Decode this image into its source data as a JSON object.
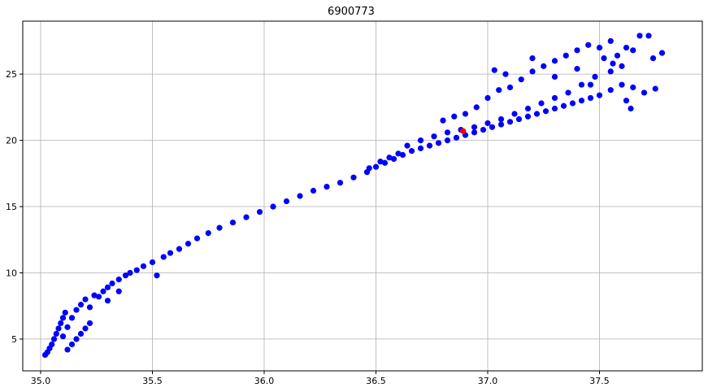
{
  "chart_data": {
    "type": "scatter",
    "title": "6900773",
    "xlabel": "",
    "ylabel": "",
    "xlim": [
      34.92,
      37.96
    ],
    "ylim": [
      2.6,
      29.0
    ],
    "xticks": [
      35.0,
      35.5,
      36.0,
      36.5,
      37.0,
      37.5
    ],
    "xtick_labels": [
      "35.0",
      "35.5",
      "36.0",
      "36.5",
      "37.0",
      "37.5"
    ],
    "yticks": [
      5,
      10,
      15,
      20,
      25
    ],
    "ytick_labels": [
      "5",
      "10",
      "15",
      "20",
      "25"
    ],
    "grid": true,
    "legend": "none",
    "series": [
      {
        "color": "#0000ff",
        "points": [
          [
            35.02,
            3.8
          ],
          [
            35.03,
            4.0
          ],
          [
            35.04,
            4.3
          ],
          [
            35.05,
            4.6
          ],
          [
            35.06,
            5.0
          ],
          [
            35.07,
            5.4
          ],
          [
            35.08,
            5.8
          ],
          [
            35.09,
            6.2
          ],
          [
            35.1,
            6.6
          ],
          [
            35.11,
            7.0
          ],
          [
            35.12,
            4.2
          ],
          [
            35.14,
            4.6
          ],
          [
            35.16,
            5.0
          ],
          [
            35.18,
            5.4
          ],
          [
            35.2,
            5.8
          ],
          [
            35.22,
            6.2
          ],
          [
            35.1,
            5.2
          ],
          [
            35.12,
            5.9
          ],
          [
            35.14,
            6.6
          ],
          [
            35.16,
            7.2
          ],
          [
            35.18,
            7.6
          ],
          [
            35.2,
            8.0
          ],
          [
            35.22,
            7.4
          ],
          [
            35.24,
            8.3
          ],
          [
            35.26,
            8.2
          ],
          [
            35.28,
            8.6
          ],
          [
            35.3,
            8.9
          ],
          [
            35.32,
            9.2
          ],
          [
            35.35,
            9.5
          ],
          [
            35.38,
            9.8
          ],
          [
            35.3,
            7.9
          ],
          [
            35.35,
            8.6
          ],
          [
            35.4,
            10.0
          ],
          [
            35.43,
            10.2
          ],
          [
            35.46,
            10.5
          ],
          [
            35.5,
            10.8
          ],
          [
            35.52,
            9.8
          ],
          [
            35.55,
            11.2
          ],
          [
            35.58,
            11.5
          ],
          [
            35.62,
            11.8
          ],
          [
            35.66,
            12.2
          ],
          [
            35.7,
            12.6
          ],
          [
            35.75,
            13.0
          ],
          [
            35.8,
            13.4
          ],
          [
            35.86,
            13.8
          ],
          [
            35.92,
            14.2
          ],
          [
            35.98,
            14.6
          ],
          [
            36.04,
            15.0
          ],
          [
            36.1,
            15.4
          ],
          [
            36.16,
            15.8
          ],
          [
            36.22,
            16.2
          ],
          [
            36.28,
            16.5
          ],
          [
            36.34,
            16.8
          ],
          [
            36.4,
            17.2
          ],
          [
            36.46,
            17.6
          ],
          [
            36.5,
            18.0
          ],
          [
            36.54,
            18.3
          ],
          [
            36.58,
            18.6
          ],
          [
            36.62,
            18.9
          ],
          [
            36.66,
            19.2
          ],
          [
            36.7,
            19.4
          ],
          [
            36.74,
            19.6
          ],
          [
            36.78,
            19.8
          ],
          [
            36.82,
            20.0
          ],
          [
            36.86,
            20.2
          ],
          [
            36.9,
            20.4
          ],
          [
            36.94,
            20.6
          ],
          [
            36.98,
            20.8
          ],
          [
            37.02,
            21.0
          ],
          [
            37.06,
            21.2
          ],
          [
            37.1,
            21.4
          ],
          [
            37.14,
            21.6
          ],
          [
            37.18,
            21.8
          ],
          [
            37.22,
            22.0
          ],
          [
            37.26,
            22.2
          ],
          [
            37.3,
            22.4
          ],
          [
            37.34,
            22.6
          ],
          [
            37.38,
            22.8
          ],
          [
            37.42,
            23.0
          ],
          [
            37.46,
            23.2
          ],
          [
            37.5,
            23.4
          ],
          [
            37.55,
            23.8
          ],
          [
            37.6,
            24.2
          ],
          [
            37.65,
            24.0
          ],
          [
            36.8,
            21.5
          ],
          [
            36.85,
            21.8
          ],
          [
            36.9,
            22.0
          ],
          [
            36.95,
            22.5
          ],
          [
            37.0,
            23.2
          ],
          [
            37.05,
            23.8
          ],
          [
            37.1,
            24.0
          ],
          [
            37.15,
            24.6
          ],
          [
            37.2,
            25.2
          ],
          [
            37.25,
            25.6
          ],
          [
            37.3,
            26.0
          ],
          [
            37.35,
            26.4
          ],
          [
            37.4,
            26.8
          ],
          [
            37.45,
            27.2
          ],
          [
            37.5,
            27.0
          ],
          [
            37.55,
            27.5
          ],
          [
            37.58,
            26.4
          ],
          [
            37.62,
            27.0
          ],
          [
            37.65,
            26.8
          ],
          [
            37.68,
            27.9
          ],
          [
            37.72,
            27.9
          ],
          [
            37.74,
            26.2
          ],
          [
            37.78,
            26.6
          ],
          [
            37.6,
            25.6
          ],
          [
            37.55,
            25.2
          ],
          [
            37.48,
            24.8
          ],
          [
            37.42,
            24.2
          ],
          [
            37.36,
            23.6
          ],
          [
            37.3,
            23.2
          ],
          [
            37.24,
            22.8
          ],
          [
            37.18,
            22.4
          ],
          [
            37.12,
            22.0
          ],
          [
            37.06,
            21.6
          ],
          [
            37.0,
            21.3
          ],
          [
            36.94,
            21.0
          ],
          [
            36.88,
            20.8
          ],
          [
            36.82,
            20.6
          ],
          [
            36.76,
            20.3
          ],
          [
            36.7,
            20.0
          ],
          [
            36.64,
            19.6
          ],
          [
            36.6,
            19.0
          ],
          [
            36.56,
            18.7
          ],
          [
            36.52,
            18.4
          ],
          [
            36.47,
            17.9
          ],
          [
            37.03,
            25.3
          ],
          [
            37.08,
            25.0
          ],
          [
            37.2,
            26.2
          ],
          [
            37.3,
            24.8
          ],
          [
            37.4,
            25.4
          ],
          [
            37.46,
            24.2
          ],
          [
            37.52,
            26.2
          ],
          [
            37.56,
            25.8
          ],
          [
            37.62,
            23.0
          ],
          [
            37.64,
            22.4
          ],
          [
            37.7,
            23.6
          ],
          [
            37.75,
            23.9
          ]
        ]
      },
      {
        "color": "#ff0000",
        "points": [
          [
            36.89,
            20.7
          ]
        ]
      }
    ]
  }
}
